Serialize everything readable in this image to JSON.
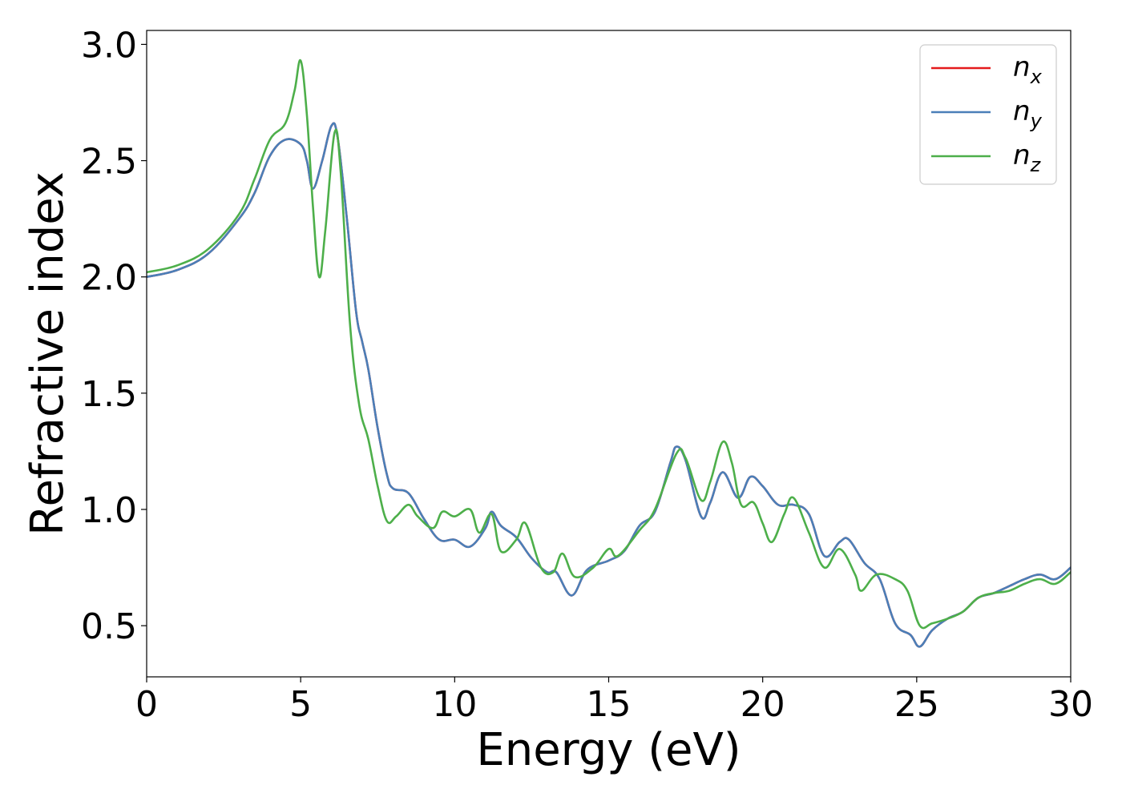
{
  "chart_data": {
    "type": "line",
    "title": "",
    "xlabel": "Energy (eV)",
    "ylabel": "Refractive index",
    "xlim": [
      0,
      30
    ],
    "ylim": [
      0.28,
      3.06
    ],
    "xticks": [
      0,
      5,
      10,
      15,
      20,
      25,
      30
    ],
    "xtick_labels": [
      "0",
      "5",
      "10",
      "15",
      "20",
      "25",
      "30"
    ],
    "yticks": [
      0.5,
      1.0,
      1.5,
      2.0,
      2.5,
      3.0
    ],
    "ytick_labels": [
      "0.5",
      "1.0",
      "1.5",
      "2.0",
      "2.5",
      "3.0"
    ],
    "grid": false,
    "legend_position": "top-right",
    "series": [
      {
        "name": "n",
        "subscript": "x",
        "color": "#e41a1c",
        "x": [
          0,
          1,
          2,
          3,
          3.5,
          4,
          4.5,
          5,
          5.2,
          5.4,
          5.7,
          6,
          6.2,
          6.5,
          6.8,
          7,
          7.2,
          7.5,
          7.8,
          8,
          8.5,
          9,
          9.5,
          10,
          10.5,
          11,
          11.2,
          11.5,
          12,
          12.5,
          13,
          13.3,
          13.8,
          14.3,
          15,
          15.5,
          16,
          16.5,
          17,
          17.2,
          17.5,
          18,
          18.3,
          18.7,
          19.2,
          19.6,
          20,
          20.5,
          21,
          21.5,
          22,
          22.5,
          22.8,
          23.3,
          23.8,
          24.3,
          24.8,
          25.1,
          25.5,
          26,
          26.5,
          27,
          27.5,
          28,
          28.5,
          29,
          29.5,
          30
        ],
        "y": [
          2.0,
          2.03,
          2.1,
          2.25,
          2.36,
          2.52,
          2.59,
          2.57,
          2.5,
          2.38,
          2.5,
          2.65,
          2.6,
          2.25,
          1.85,
          1.72,
          1.6,
          1.35,
          1.15,
          1.09,
          1.07,
          0.96,
          0.87,
          0.87,
          0.84,
          0.92,
          0.99,
          0.93,
          0.88,
          0.79,
          0.73,
          0.73,
          0.63,
          0.74,
          0.78,
          0.82,
          0.93,
          0.99,
          1.2,
          1.27,
          1.21,
          0.97,
          1.03,
          1.16,
          1.05,
          1.14,
          1.1,
          1.02,
          1.02,
          0.98,
          0.8,
          0.86,
          0.87,
          0.77,
          0.7,
          0.51,
          0.46,
          0.41,
          0.48,
          0.53,
          0.56,
          0.62,
          0.64,
          0.67,
          0.7,
          0.72,
          0.7,
          0.75
        ]
      },
      {
        "name": "n",
        "subscript": "y",
        "color": "#4a7fb8",
        "x": [
          0,
          1,
          2,
          3,
          3.5,
          4,
          4.5,
          5,
          5.2,
          5.4,
          5.7,
          6,
          6.2,
          6.5,
          6.8,
          7,
          7.2,
          7.5,
          7.8,
          8,
          8.5,
          9,
          9.5,
          10,
          10.5,
          11,
          11.2,
          11.5,
          12,
          12.5,
          13,
          13.3,
          13.8,
          14.3,
          15,
          15.5,
          16,
          16.5,
          17,
          17.2,
          17.5,
          18,
          18.3,
          18.7,
          19.2,
          19.6,
          20,
          20.5,
          21,
          21.5,
          22,
          22.5,
          22.8,
          23.3,
          23.8,
          24.3,
          24.8,
          25.1,
          25.5,
          26,
          26.5,
          27,
          27.5,
          28,
          28.5,
          29,
          29.5,
          30
        ],
        "y": [
          2.0,
          2.03,
          2.1,
          2.25,
          2.36,
          2.52,
          2.59,
          2.57,
          2.5,
          2.38,
          2.5,
          2.65,
          2.6,
          2.25,
          1.85,
          1.72,
          1.6,
          1.35,
          1.15,
          1.09,
          1.07,
          0.96,
          0.87,
          0.87,
          0.84,
          0.92,
          0.99,
          0.93,
          0.88,
          0.79,
          0.73,
          0.73,
          0.63,
          0.74,
          0.78,
          0.82,
          0.93,
          0.99,
          1.2,
          1.27,
          1.21,
          0.97,
          1.03,
          1.16,
          1.05,
          1.14,
          1.1,
          1.02,
          1.02,
          0.98,
          0.8,
          0.86,
          0.87,
          0.77,
          0.7,
          0.51,
          0.46,
          0.41,
          0.48,
          0.53,
          0.56,
          0.62,
          0.64,
          0.67,
          0.7,
          0.72,
          0.7,
          0.75
        ]
      },
      {
        "name": "n",
        "subscript": "z",
        "color": "#4daf4a",
        "x": [
          0,
          1,
          2,
          3,
          3.5,
          4,
          4.5,
          4.8,
          5,
          5.2,
          5.4,
          5.6,
          5.8,
          6.1,
          6.3,
          6.6,
          6.9,
          7.2,
          7.5,
          7.8,
          8.1,
          8.5,
          8.8,
          9.3,
          9.6,
          10,
          10.5,
          10.8,
          11.2,
          11.5,
          12,
          12.3,
          12.8,
          13.2,
          13.5,
          13.9,
          14.5,
          15,
          15.3,
          16,
          16.5,
          17.2,
          17.5,
          18,
          18.3,
          18.7,
          19,
          19.3,
          19.7,
          20,
          20.3,
          20.7,
          21,
          21.5,
          22,
          22.5,
          23,
          23.2,
          23.7,
          24.3,
          24.7,
          25.1,
          25.5,
          26,
          26.5,
          27,
          27.5,
          28,
          28.5,
          29,
          29.5,
          30
        ],
        "y": [
          2.02,
          2.05,
          2.12,
          2.27,
          2.42,
          2.59,
          2.66,
          2.8,
          2.93,
          2.7,
          2.3,
          2.0,
          2.2,
          2.62,
          2.45,
          1.8,
          1.45,
          1.3,
          1.1,
          0.95,
          0.97,
          1.02,
          0.97,
          0.92,
          0.99,
          0.97,
          1.0,
          0.9,
          0.98,
          0.82,
          0.87,
          0.94,
          0.75,
          0.73,
          0.81,
          0.71,
          0.75,
          0.83,
          0.8,
          0.91,
          1.0,
          1.24,
          1.22,
          1.04,
          1.12,
          1.29,
          1.2,
          1.02,
          1.03,
          0.94,
          0.86,
          0.98,
          1.05,
          0.9,
          0.75,
          0.83,
          0.72,
          0.65,
          0.72,
          0.7,
          0.65,
          0.5,
          0.51,
          0.53,
          0.56,
          0.62,
          0.64,
          0.65,
          0.68,
          0.7,
          0.68,
          0.73
        ]
      }
    ]
  }
}
